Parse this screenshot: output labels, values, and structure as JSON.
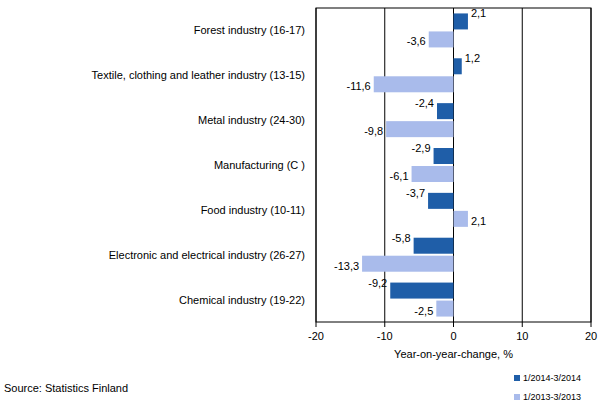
{
  "chart_data": {
    "type": "bar",
    "orientation": "horizontal",
    "xlabel": "Year-on-year-change, %",
    "source": "Source: Statistics Finland",
    "categories": [
      "Forest industry (16-17)",
      "Textile, clothing and leather industry (13-15)",
      "Metal industry (24-30)",
      "Manufacturing (C )",
      "Food industry (10-11)",
      "Electronic and electrical industry (26-27)",
      "Chemical industry (19-22)"
    ],
    "series": [
      {
        "name": "1/2014-3/2014",
        "color": "#1f5ea8",
        "values": [
          2.1,
          1.2,
          -2.4,
          -2.9,
          -3.7,
          -5.8,
          -9.2
        ],
        "value_labels": [
          "2,1",
          "1,2",
          "-2,4",
          "-2,9",
          "-3,7",
          "-5,8",
          "-9,2"
        ]
      },
      {
        "name": "1/2013-3/2013",
        "color": "#a9bbeb",
        "values": [
          -3.6,
          -11.6,
          -9.8,
          -6.1,
          2.1,
          -13.3,
          -2.5
        ],
        "value_labels": [
          "-3,6",
          "-11,6",
          "-9,8",
          "-6,1",
          "2,1",
          "-13,3",
          "-2,5"
        ]
      }
    ],
    "xlim": [
      -20,
      20
    ],
    "xticks": [
      -20,
      -10,
      0,
      10,
      20
    ],
    "grid": true,
    "data_labels": true,
    "legend": "bottom-right"
  }
}
